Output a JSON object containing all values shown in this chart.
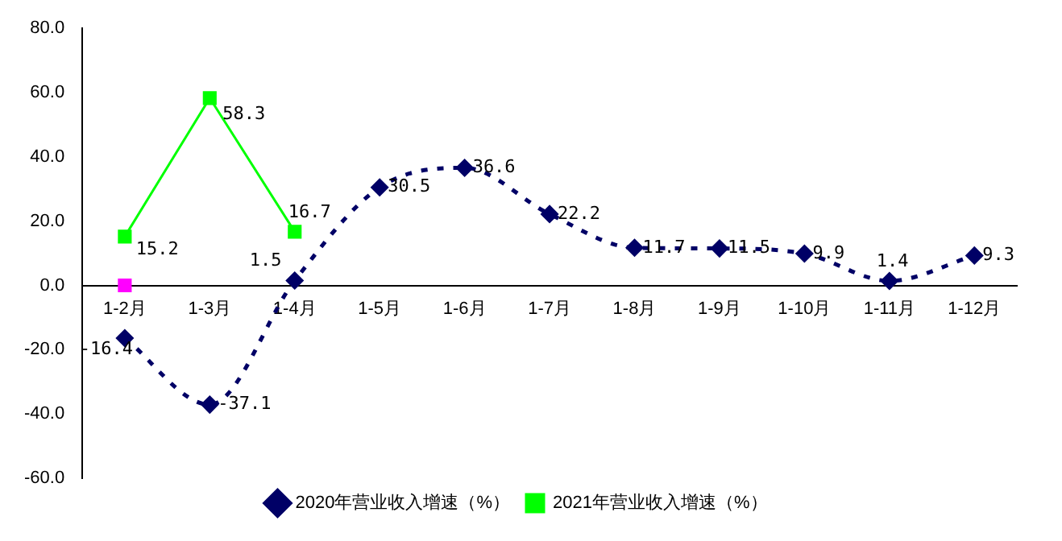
{
  "chart_data": {
    "type": "line",
    "categories": [
      "1-2月",
      "1-3月",
      "1-4月",
      "1-5月",
      "1-6月",
      "1-7月",
      "1-8月",
      "1-9月",
      "1-10月",
      "1-11月",
      "1-12月"
    ],
    "series": [
      {
        "name": "2020年营业收入增速（%）",
        "color": "#000066",
        "marker": "diamond",
        "line_style": "dashed",
        "values": [
          -16.4,
          -37.1,
          1.5,
          30.5,
          36.6,
          22.2,
          11.7,
          11.5,
          9.9,
          1.4,
          9.3
        ],
        "value_labels": [
          "-16.4",
          "-37.1",
          "1.5",
          "30.5",
          "36.6",
          "22.2",
          "11.7",
          "11.5",
          "9.9",
          "1.4",
          "9.3"
        ]
      },
      {
        "name": "2021年营业收入增速（%）",
        "color": "#00ff00",
        "marker": "square",
        "line_style": "solid",
        "values": [
          15.2,
          58.3,
          16.7,
          null,
          null,
          null,
          null,
          null,
          null,
          null,
          null
        ],
        "value_labels": [
          "15.2",
          "58.3",
          "16.7",
          null,
          null,
          null,
          null,
          null,
          null,
          null,
          null
        ]
      },
      {
        "type": "scatter",
        "color": "#ff00ff",
        "marker": "square",
        "values": [
          0,
          null,
          null,
          null,
          null,
          null,
          null,
          null,
          null,
          null,
          null
        ]
      }
    ],
    "ylim": [
      -60,
      80
    ],
    "yticks": [
      {
        "value": -60,
        "label": "-60.0"
      },
      {
        "value": -40,
        "label": "-40.0"
      },
      {
        "value": -20,
        "label": "-20.0"
      },
      {
        "value": 0,
        "label": "0.0"
      },
      {
        "value": 20,
        "label": "20.0"
      },
      {
        "value": 40,
        "label": "40.0"
      },
      {
        "value": 60,
        "label": "60.0"
      },
      {
        "value": 80,
        "label": "80.0"
      }
    ],
    "grid": false,
    "legend": "bottom"
  }
}
